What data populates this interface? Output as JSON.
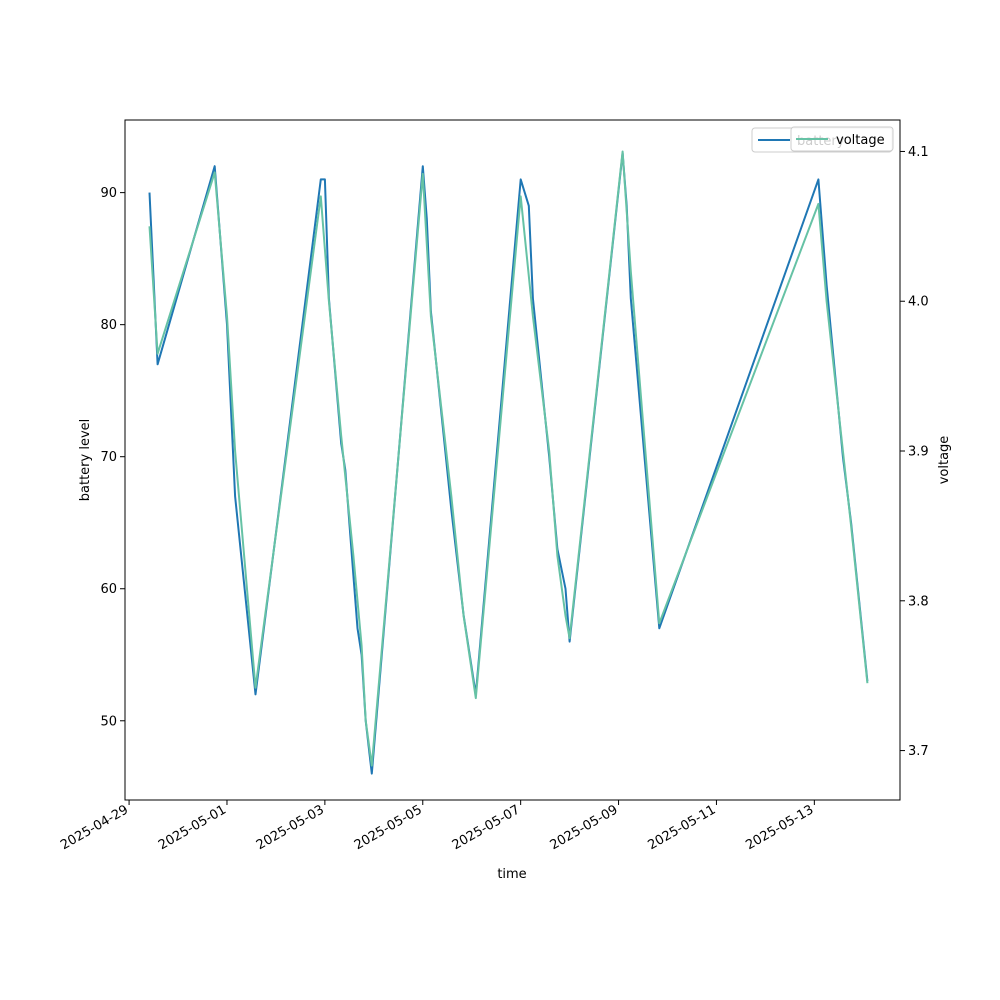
{
  "chart_data": {
    "type": "line",
    "xlabel": "time",
    "ylabel_left": "battery level",
    "ylabel_right": "voltage",
    "x_ticks": [
      "2025-04-29",
      "2025-05-01",
      "2025-05-03",
      "2025-05-05",
      "2025-05-07",
      "2025-05-09",
      "2025-05-11",
      "2025-05-13"
    ],
    "y_left_ticks": [
      50,
      60,
      70,
      80,
      90
    ],
    "y_right_ticks": [
      3.7,
      3.8,
      3.9,
      4.0,
      4.1
    ],
    "y_left_range": [
      44,
      95.5
    ],
    "y_right_range": [
      3.667,
      4.121
    ],
    "x_range": [
      "2025-04-28T22:00",
      "2025-05-14T18:00"
    ],
    "legend_left": {
      "label": "battery",
      "position": "top-right"
    },
    "legend_right": {
      "label": "voltage",
      "position": "top-right"
    },
    "series": [
      {
        "name": "battery",
        "axis": "left",
        "color": "#1f77b4",
        "points": [
          [
            "2025-04-29T10:00",
            90
          ],
          [
            "2025-04-29T14:00",
            77
          ],
          [
            "2025-04-30T18:00",
            92
          ],
          [
            "2025-05-01T00:00",
            80
          ],
          [
            "2025-05-01T04:00",
            67
          ],
          [
            "2025-05-01T14:00",
            52
          ],
          [
            "2025-05-02T22:00",
            91
          ],
          [
            "2025-05-03T00:00",
            91
          ],
          [
            "2025-05-03T02:00",
            82
          ],
          [
            "2025-05-03T08:00",
            71
          ],
          [
            "2025-05-03T10:00",
            69
          ],
          [
            "2025-05-03T14:00",
            61
          ],
          [
            "2025-05-03T16:00",
            57
          ],
          [
            "2025-05-03T18:00",
            55
          ],
          [
            "2025-05-03T20:00",
            50
          ],
          [
            "2025-05-03T23:00",
            46
          ],
          [
            "2025-05-05T00:00",
            92
          ],
          [
            "2025-05-05T02:00",
            88
          ],
          [
            "2025-05-05T04:00",
            81
          ],
          [
            "2025-05-05T14:00",
            66
          ],
          [
            "2025-05-05T20:00",
            58
          ],
          [
            "2025-05-06T02:00",
            52
          ],
          [
            "2025-05-07T00:00",
            91
          ],
          [
            "2025-05-07T04:00",
            89
          ],
          [
            "2025-05-07T06:00",
            82
          ],
          [
            "2025-05-07T14:00",
            70
          ],
          [
            "2025-05-07T18:00",
            63
          ],
          [
            "2025-05-07T22:00",
            60
          ],
          [
            "2025-05-08T00:00",
            56
          ],
          [
            "2025-05-09T02:00",
            93
          ],
          [
            "2025-05-09T04:00",
            89
          ],
          [
            "2025-05-09T06:00",
            82
          ],
          [
            "2025-05-09T20:00",
            57
          ],
          [
            "2025-05-13T02:00",
            91
          ],
          [
            "2025-05-13T06:00",
            83
          ],
          [
            "2025-05-13T14:00",
            70
          ],
          [
            "2025-05-13T18:00",
            65
          ],
          [
            "2025-05-14T02:00",
            53
          ]
        ]
      },
      {
        "name": "voltage",
        "axis": "right",
        "color": "#66c2a5",
        "points": [
          [
            "2025-04-29T10:00",
            4.05
          ],
          [
            "2025-04-29T14:00",
            3.965
          ],
          [
            "2025-04-30T18:00",
            4.086
          ],
          [
            "2025-05-01T00:00",
            3.99
          ],
          [
            "2025-05-01T04:00",
            3.9
          ],
          [
            "2025-05-01T14:00",
            3.742
          ],
          [
            "2025-05-02T22:00",
            4.07
          ],
          [
            "2025-05-03T02:00",
            4.0
          ],
          [
            "2025-05-03T08:00",
            3.91
          ],
          [
            "2025-05-03T14:00",
            3.83
          ],
          [
            "2025-05-03T18:00",
            3.77
          ],
          [
            "2025-05-03T20:00",
            3.72
          ],
          [
            "2025-05-03T23:00",
            3.69
          ],
          [
            "2025-05-05T00:00",
            4.085
          ],
          [
            "2025-05-05T04:00",
            3.99
          ],
          [
            "2025-05-05T14:00",
            3.87
          ],
          [
            "2025-05-05T20:00",
            3.79
          ],
          [
            "2025-05-06T02:00",
            3.735
          ],
          [
            "2025-05-07T00:00",
            4.07
          ],
          [
            "2025-05-07T06:00",
            3.99
          ],
          [
            "2025-05-07T14:00",
            3.9
          ],
          [
            "2025-05-07T18:00",
            3.83
          ],
          [
            "2025-05-07T22:00",
            3.79
          ],
          [
            "2025-05-08T00:00",
            3.775
          ],
          [
            "2025-05-09T02:00",
            4.1
          ],
          [
            "2025-05-09T06:00",
            4.02
          ],
          [
            "2025-05-09T20:00",
            3.785
          ],
          [
            "2025-05-13T02:00",
            4.065
          ],
          [
            "2025-05-13T06:00",
            4.0
          ],
          [
            "2025-05-13T14:00",
            3.9
          ],
          [
            "2025-05-13T18:00",
            3.85
          ],
          [
            "2025-05-14T02:00",
            3.745
          ]
        ]
      }
    ]
  }
}
